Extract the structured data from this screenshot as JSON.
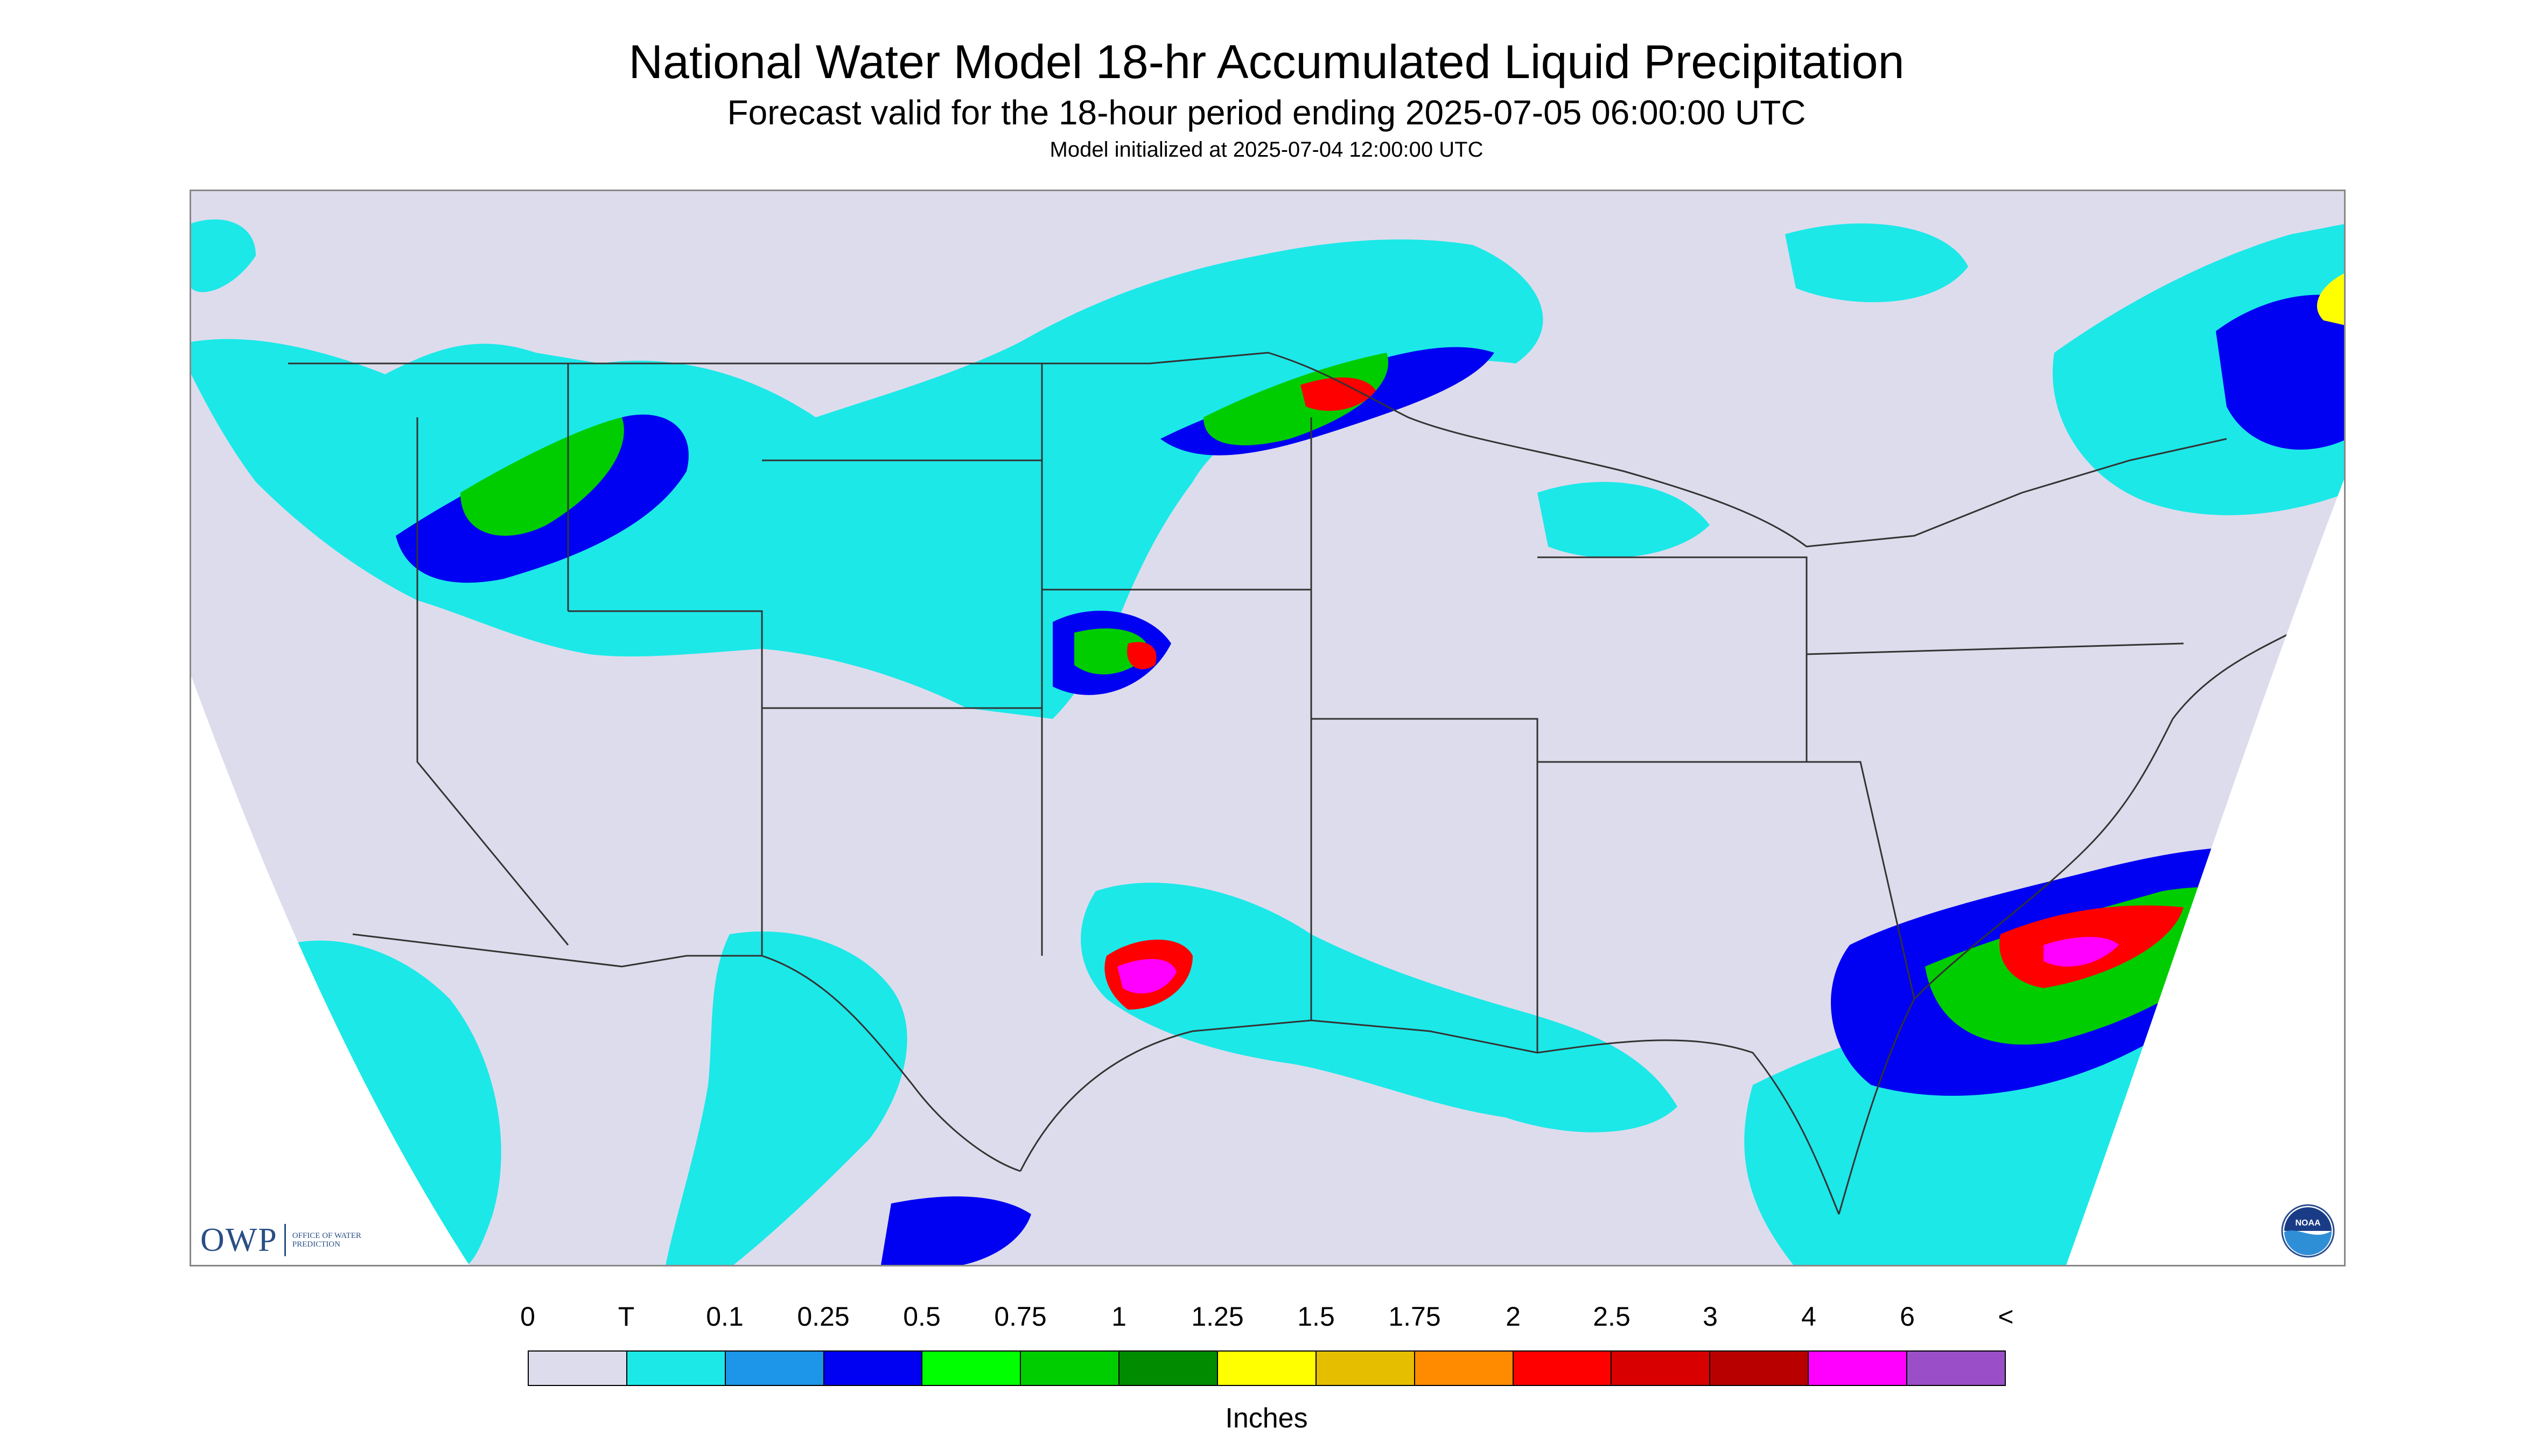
{
  "title": "National Water Model 18-hr Accumulated Liquid Precipitation",
  "subtitle": "Forecast valid for the 18-hour period ending 2025-07-05 06:00:00 UTC",
  "init_note": "Model initialized at 2025-07-04 12:00:00 UTC",
  "logos": {
    "owp_letters": "OWP",
    "owp_text": "OFFICE OF WATER PREDICTION",
    "noaa_text": "NOAA"
  },
  "legend": {
    "units": "Inches",
    "ticks": [
      "0",
      "T",
      "0.1",
      "0.25",
      "0.5",
      "0.75",
      "1",
      "1.25",
      "1.5",
      "1.75",
      "2",
      "2.5",
      "3",
      "4",
      "6",
      "<"
    ],
    "colors": [
      "#dddcec",
      "#1ce8e8",
      "#1d95e8",
      "#0000f2",
      "#00ff00",
      "#00cd00",
      "#008b00",
      "#ffff00",
      "#e6be00",
      "#ff8c00",
      "#ff0000",
      "#d80000",
      "#b80000",
      "#ff00ff",
      "#9a4fc8"
    ]
  },
  "map": {
    "background_color": "#dddcec",
    "outside_domain_color": "#ffffff",
    "boundary_color": "#333333"
  }
}
